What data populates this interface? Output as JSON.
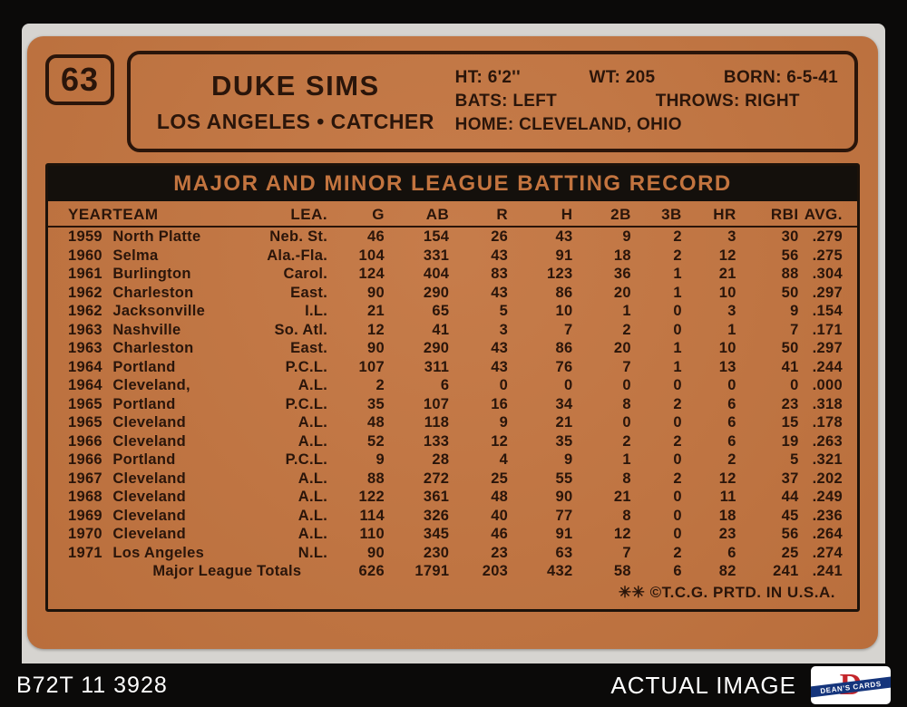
{
  "page": {
    "bottom_bar": {
      "code": "B72T 11 3928",
      "label": "ACTUAL IMAGE"
    },
    "logo": {
      "letter": "D",
      "text": "DEAN'S CARDS"
    }
  },
  "colors": {
    "card_orange": "#c3743f",
    "ink_brown_black": "#2a150a",
    "bar_black": "#14100c",
    "frame_black": "#0b0a09",
    "scan_gray": "#d6d4d0",
    "logo_red": "#c4262b",
    "logo_blue": "#15357c"
  },
  "card": {
    "number": "63",
    "player": {
      "name": "DUKE SIMS",
      "team_position": "LOS ANGELES  •  CATCHER"
    },
    "bio": {
      "ht": "HT: 6'2''",
      "wt": "WT: 205",
      "born": "BORN: 6-5-41",
      "bats": "BATS: LEFT",
      "throws": "THROWS: RIGHT",
      "home": "HOME: CLEVELAND, OHIO"
    },
    "table": {
      "title": "MAJOR AND MINOR LEAGUE BATTING RECORD",
      "columns": [
        "YEAR",
        "TEAM",
        "LEA.",
        "G",
        "AB",
        "R",
        "H",
        "2B",
        "3B",
        "HR",
        "RBI",
        "AVG."
      ],
      "rows": [
        [
          "1959",
          "North Platte",
          "Neb. St.",
          "46",
          "154",
          "26",
          "43",
          "9",
          "2",
          "3",
          "30",
          ".279"
        ],
        [
          "1960",
          "Selma",
          "Ala.-Fla.",
          "104",
          "331",
          "43",
          "91",
          "18",
          "2",
          "12",
          "56",
          ".275"
        ],
        [
          "1961",
          "Burlington",
          "Carol.",
          "124",
          "404",
          "83",
          "123",
          "36",
          "1",
          "21",
          "88",
          ".304"
        ],
        [
          "1962",
          "Charleston",
          "East.",
          "90",
          "290",
          "43",
          "86",
          "20",
          "1",
          "10",
          "50",
          ".297"
        ],
        [
          "1962",
          "Jacksonville",
          "I.L.",
          "21",
          "65",
          "5",
          "10",
          "1",
          "0",
          "3",
          "9",
          ".154"
        ],
        [
          "1963",
          "Nashville",
          "So. Atl.",
          "12",
          "41",
          "3",
          "7",
          "2",
          "0",
          "1",
          "7",
          ".171"
        ],
        [
          "1963",
          "Charleston",
          "East.",
          "90",
          "290",
          "43",
          "86",
          "20",
          "1",
          "10",
          "50",
          ".297"
        ],
        [
          "1964",
          "Portland",
          "P.C.L.",
          "107",
          "311",
          "43",
          "76",
          "7",
          "1",
          "13",
          "41",
          ".244"
        ],
        [
          "1964",
          "Cleveland,",
          "A.L.",
          "2",
          "6",
          "0",
          "0",
          "0",
          "0",
          "0",
          "0",
          ".000"
        ],
        [
          "1965",
          "Portland",
          "P.C.L.",
          "35",
          "107",
          "16",
          "34",
          "8",
          "2",
          "6",
          "23",
          ".318"
        ],
        [
          "1965",
          "Cleveland",
          "A.L.",
          "48",
          "118",
          "9",
          "21",
          "0",
          "0",
          "6",
          "15",
          ".178"
        ],
        [
          "1966",
          "Cleveland",
          "A.L.",
          "52",
          "133",
          "12",
          "35",
          "2",
          "2",
          "6",
          "19",
          ".263"
        ],
        [
          "1966",
          "Portland",
          "P.C.L.",
          "9",
          "28",
          "4",
          "9",
          "1",
          "0",
          "2",
          "5",
          ".321"
        ],
        [
          "1967",
          "Cleveland",
          "A.L.",
          "88",
          "272",
          "25",
          "55",
          "8",
          "2",
          "12",
          "37",
          ".202"
        ],
        [
          "1968",
          "Cleveland",
          "A.L.",
          "122",
          "361",
          "48",
          "90",
          "21",
          "0",
          "11",
          "44",
          ".249"
        ],
        [
          "1969",
          "Cleveland",
          "A.L.",
          "114",
          "326",
          "40",
          "77",
          "8",
          "0",
          "18",
          "45",
          ".236"
        ],
        [
          "1970",
          "Cleveland",
          "A.L.",
          "110",
          "345",
          "46",
          "91",
          "12",
          "0",
          "23",
          "56",
          ".264"
        ],
        [
          "1971",
          "Los Angeles",
          "N.L.",
          "90",
          "230",
          "23",
          "63",
          "7",
          "2",
          "6",
          "25",
          ".274"
        ]
      ],
      "totals": {
        "label": "Major League Totals",
        "values": [
          "626",
          "1791",
          "203",
          "432",
          "58",
          "6",
          "82",
          "241",
          ".241"
        ]
      },
      "copyright": "✳✳ ©T.C.G. PRTD. IN U.S.A."
    }
  }
}
